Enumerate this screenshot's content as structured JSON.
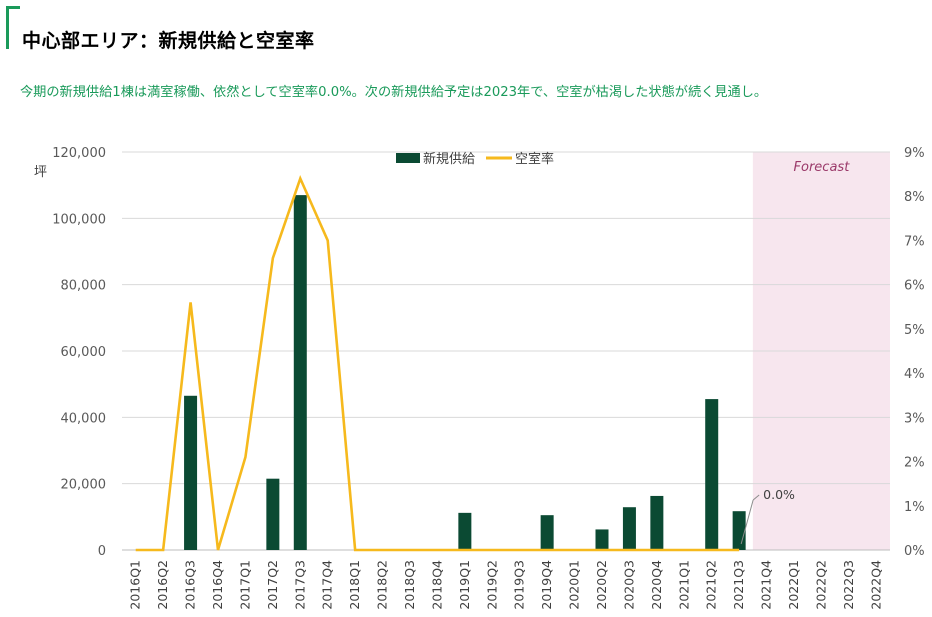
{
  "header": {
    "title": "中心部エリア：新規供給と空室率",
    "subtitle": "今期の新規供給1棟は満室稼働、依然として空室率0.0%。次の新規供給予定は2023年で、空室が枯渇した状態が続く見通し。"
  },
  "chart_data": {
    "type": "bar+line",
    "categories": [
      "2016Q1",
      "2016Q2",
      "2016Q3",
      "2016Q4",
      "2017Q1",
      "2017Q2",
      "2017Q3",
      "2017Q4",
      "2018Q1",
      "2018Q2",
      "2018Q3",
      "2018Q4",
      "2019Q1",
      "2019Q2",
      "2019Q3",
      "2019Q4",
      "2020Q1",
      "2020Q2",
      "2020Q3",
      "2020Q4",
      "2021Q1",
      "2021Q2",
      "2021Q3",
      "2021Q4",
      "2022Q1",
      "2022Q2",
      "2022Q3",
      "2022Q4"
    ],
    "series": [
      {
        "name": "新規供給",
        "kind": "bar",
        "axis": "left",
        "color": "#0b4a33",
        "values": [
          0,
          0,
          46500,
          0,
          0,
          21500,
          107000,
          0,
          0,
          0,
          0,
          0,
          11200,
          0,
          0,
          10500,
          0,
          6200,
          12900,
          16300,
          0,
          45500,
          11700,
          null,
          null,
          null,
          null,
          null
        ]
      },
      {
        "name": "空室率",
        "kind": "line",
        "axis": "right",
        "color": "#f6b91d",
        "values": [
          0,
          0,
          5.6,
          0,
          2.1,
          6.6,
          8.4,
          7.0,
          0,
          0,
          0,
          0,
          0,
          0,
          0,
          0,
          0,
          0,
          0,
          0,
          0,
          0,
          0,
          null,
          null,
          null,
          null,
          null
        ]
      }
    ],
    "y_left": {
      "unit": "坪",
      "ylim": [
        0,
        120000
      ],
      "ticks": [
        "0",
        "20,000",
        "40,000",
        "60,000",
        "80,000",
        "100,000",
        "120,000"
      ]
    },
    "y_right": {
      "ylim": [
        0,
        9
      ],
      "ticks": [
        "0%",
        "1%",
        "2%",
        "3%",
        "4%",
        "5%",
        "6%",
        "7%",
        "8%",
        "9%"
      ]
    },
    "forecast": {
      "label": "Forecast",
      "from": "2021Q4",
      "to": "2022Q4",
      "color": "#f7e6ee",
      "label_color": "#9b3a6a"
    },
    "annotation": {
      "text": "0.0%",
      "at": "2021Q3"
    },
    "legend": {
      "position": "top-center"
    },
    "grid": true
  }
}
